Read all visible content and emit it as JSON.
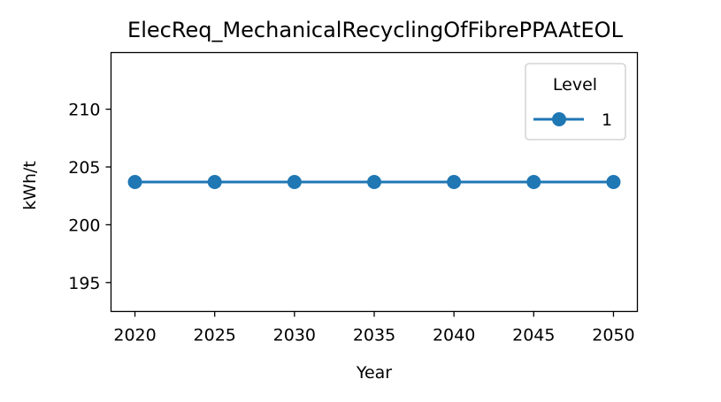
{
  "chart_data": {
    "type": "line",
    "title": "ElecReq_MechanicalRecyclingOfFibrePPAAtEOL",
    "xlabel": "Year",
    "ylabel": "kWh/t",
    "x": [
      2020,
      2025,
      2030,
      2035,
      2040,
      2045,
      2050
    ],
    "x_ticks": [
      "2020",
      "2025",
      "2030",
      "2035",
      "2040",
      "2045",
      "2050"
    ],
    "y_ticks": [
      "195",
      "200",
      "205",
      "210"
    ],
    "xlim": [
      2018.5,
      2051.5
    ],
    "ylim": [
      192.5,
      214.9
    ],
    "series": [
      {
        "name": "1",
        "values": [
          203.7,
          203.7,
          203.7,
          203.7,
          203.7,
          203.7,
          203.7
        ],
        "color": "#1f77b4",
        "marker": "circle"
      }
    ],
    "legend": {
      "title": "Level",
      "placement": "top-right"
    },
    "grid": false
  }
}
